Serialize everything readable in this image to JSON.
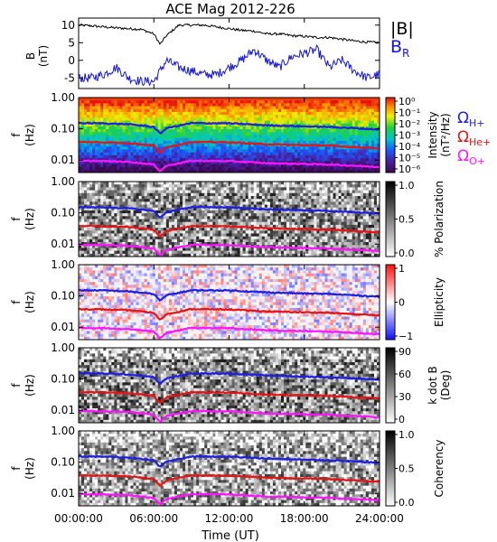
{
  "title": "ACE Mag 2012-226",
  "x_axis": {
    "label": "Time (UT)",
    "ticks": [
      "00:00:00",
      "06:00:00",
      "12:00:00",
      "18:00:00",
      "24:00:00"
    ],
    "range_hours": [
      0,
      24
    ]
  },
  "colors": {
    "B_total": "#000000",
    "B_R": "#1414d8",
    "H_plus": "#1e1ee6",
    "He_plus": "#e61414",
    "O_plus": "#ff14ff"
  },
  "field_panel": {
    "ylabel_top": "B",
    "ylabel_bottom": "(nT)",
    "yticks": [
      "10",
      "5",
      "0",
      "-5"
    ],
    "ylim": [
      -8,
      12
    ],
    "legend_b": "|B|",
    "legend_br": "B",
    "legend_br_sub": "R"
  },
  "freq_axis": {
    "label_top": "f",
    "label_bottom": "(Hz)",
    "ticks": [
      "1.00",
      "0.10",
      "0.01"
    ]
  },
  "panels": [
    {
      "name": "intensity",
      "label_line1": "Intensity",
      "label_line2": "(nT²/Hz)",
      "bar_ticks": [
        "10⁰",
        "10⁻¹",
        "10⁻²",
        "10⁻³",
        "10⁻⁴",
        "10⁻⁵",
        "10⁻⁶"
      ]
    },
    {
      "name": "polarization",
      "label_line1": "% Polarization",
      "label_line2": "",
      "bar_ticks": [
        "1.0",
        "0.5",
        "0.0"
      ]
    },
    {
      "name": "ellipticity",
      "label_line1": "Ellipticity",
      "label_line2": "",
      "bar_ticks": [
        "1",
        "0",
        "−1"
      ]
    },
    {
      "name": "kdotb",
      "label_line1": "k dot B",
      "label_line2": "(Deg)",
      "bar_ticks": [
        "90",
        "60",
        "30",
        "0"
      ]
    },
    {
      "name": "coherency",
      "label_line1": "Coherency",
      "label_line2": "",
      "bar_ticks": [
        "1.0",
        "0.5",
        "0.0"
      ]
    }
  ],
  "gyro_legend": {
    "h_base": "Ω",
    "h_sub": "H+",
    "he_base": "Ω",
    "he_sub": "He+",
    "o_base": "Ω",
    "o_sub": "O+"
  },
  "chart_data": [
    {
      "type": "line",
      "title": "ACE Mag 2012-226",
      "xlabel": "Time (UT)",
      "ylabel": "B (nT)",
      "ylim": [
        -8,
        12
      ],
      "x": [
        0,
        1,
        2,
        3,
        4,
        5,
        6,
        6.5,
        7,
        8,
        9,
        10,
        11,
        12,
        13,
        14,
        15,
        16,
        17,
        18,
        19,
        20,
        21,
        22,
        23,
        24
      ],
      "series": [
        {
          "name": "|B|",
          "values": [
            10,
            9.8,
            9.5,
            9.2,
            9,
            8.8,
            7.5,
            4.5,
            7,
            10,
            10,
            10,
            9.5,
            9,
            8.5,
            8.3,
            7.5,
            7.5,
            7,
            6.8,
            6.5,
            6.5,
            6,
            5.5,
            5.2,
            5
          ]
        },
        {
          "name": "B_R",
          "values": [
            -5,
            -5,
            -4,
            -2,
            -5,
            -6,
            -6,
            -3,
            0,
            -2,
            -3,
            -4,
            -4,
            -2,
            0,
            3,
            0,
            -2,
            1,
            2,
            3,
            -2,
            0,
            -3,
            -5,
            -4
          ]
        }
      ]
    },
    {
      "type": "line",
      "title": "",
      "xlabel": "Time (UT)",
      "ylabel": "f (Hz)",
      "yscale": "log",
      "ylim": [
        0.004,
        1.0
      ],
      "x": [
        0,
        2,
        4,
        6,
        6.5,
        7,
        9,
        12,
        15,
        18,
        20,
        22,
        24
      ],
      "series": [
        {
          "name": "Ω H+",
          "values": [
            0.152,
            0.15,
            0.14,
            0.115,
            0.07,
            0.105,
            0.152,
            0.15,
            0.13,
            0.12,
            0.115,
            0.105,
            0.095
          ]
        },
        {
          "name": "Ω He+",
          "values": [
            0.038,
            0.037,
            0.035,
            0.029,
            0.017,
            0.026,
            0.038,
            0.037,
            0.032,
            0.03,
            0.029,
            0.026,
            0.024
          ]
        },
        {
          "name": "Ω O+",
          "values": [
            0.0095,
            0.0093,
            0.0088,
            0.0072,
            0.0044,
            0.0066,
            0.0095,
            0.0093,
            0.008,
            0.0075,
            0.0072,
            0.0066,
            0.006
          ]
        }
      ]
    }
  ]
}
